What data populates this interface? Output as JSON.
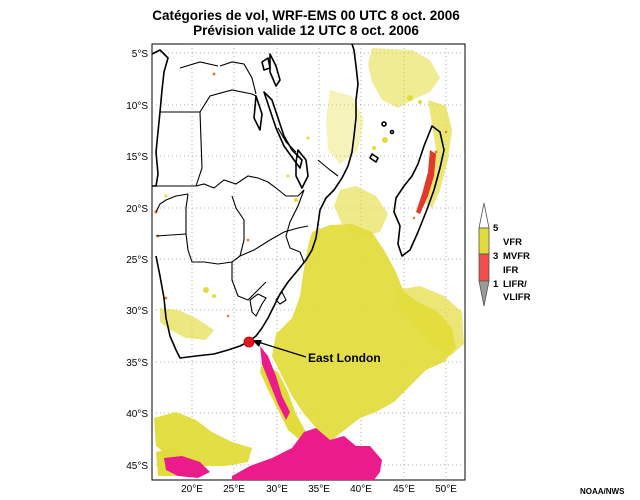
{
  "title_line1": "Catégories de vol, WRF-EMS 00 UTC 8 oct. 2006",
  "title_line2": "Prévision valide 12 UTC 8 oct. 2006",
  "lat_labels": [
    "5°S",
    "10°S",
    "15°S",
    "20°S",
    "25°S",
    "30°S",
    "35°S",
    "40°S",
    "45°S"
  ],
  "lon_labels": [
    "20°E",
    "25°E",
    "30°E",
    "35°E",
    "40°E",
    "45°E",
    "50°E"
  ],
  "annotation": "East London",
  "legend": {
    "levels": [
      "5",
      "3",
      "1"
    ],
    "labels": [
      "VFR",
      "MVFR",
      "IFR",
      "LIFR/",
      "VLIFR"
    ],
    "colors": {
      "vfr": "#e2dc3a",
      "mvfr": "#e8e4c8",
      "ifr": "#f14d4d",
      "lifr": "#9a9a9a",
      "marker": "#e8141e",
      "pink": "#ec1b8c"
    }
  },
  "credit": "NOAA/NWS"
}
